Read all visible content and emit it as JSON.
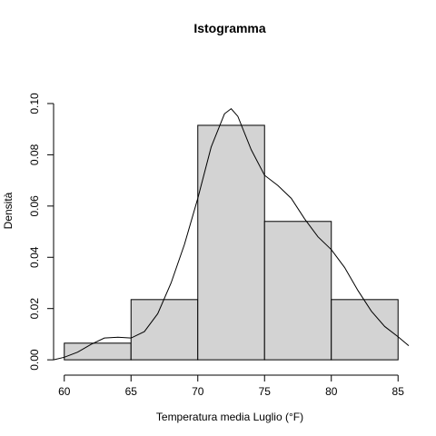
{
  "chart_data": {
    "type": "bar",
    "title": "Istogramma",
    "xlabel": "Temperatura media Luglio (°F)",
    "ylabel": "Densità",
    "bins": [
      {
        "from": 60,
        "to": 65,
        "value": 0.0065
      },
      {
        "from": 65,
        "to": 70,
        "value": 0.0235
      },
      {
        "from": 70,
        "to": 75,
        "value": 0.0915
      },
      {
        "from": 75,
        "to": 80,
        "value": 0.054
      },
      {
        "from": 80,
        "to": 85,
        "value": 0.0235
      }
    ],
    "x_ticks": [
      60,
      65,
      70,
      75,
      80,
      85
    ],
    "y_ticks": [
      "0.00",
      "0.02",
      "0.04",
      "0.06",
      "0.08",
      "0.10"
    ],
    "xlim": [
      59.2,
      85.8
    ],
    "ylim": [
      -0.0035,
      0.1085
    ],
    "density_curve": {
      "x": [
        59.2,
        60,
        61,
        62,
        63,
        64,
        65,
        66,
        67,
        68,
        69,
        70,
        71,
        72,
        72.5,
        73,
        74,
        75,
        76,
        77,
        78,
        79,
        80,
        81,
        82,
        83,
        84,
        85,
        85.8
      ],
      "y": [
        0.0,
        0.001,
        0.003,
        0.006,
        0.0085,
        0.0088,
        0.0085,
        0.011,
        0.018,
        0.03,
        0.045,
        0.063,
        0.083,
        0.096,
        0.098,
        0.095,
        0.082,
        0.072,
        0.068,
        0.063,
        0.055,
        0.048,
        0.043,
        0.036,
        0.027,
        0.019,
        0.013,
        0.009,
        0.0055
      ]
    },
    "grid": false,
    "legend": "none"
  }
}
